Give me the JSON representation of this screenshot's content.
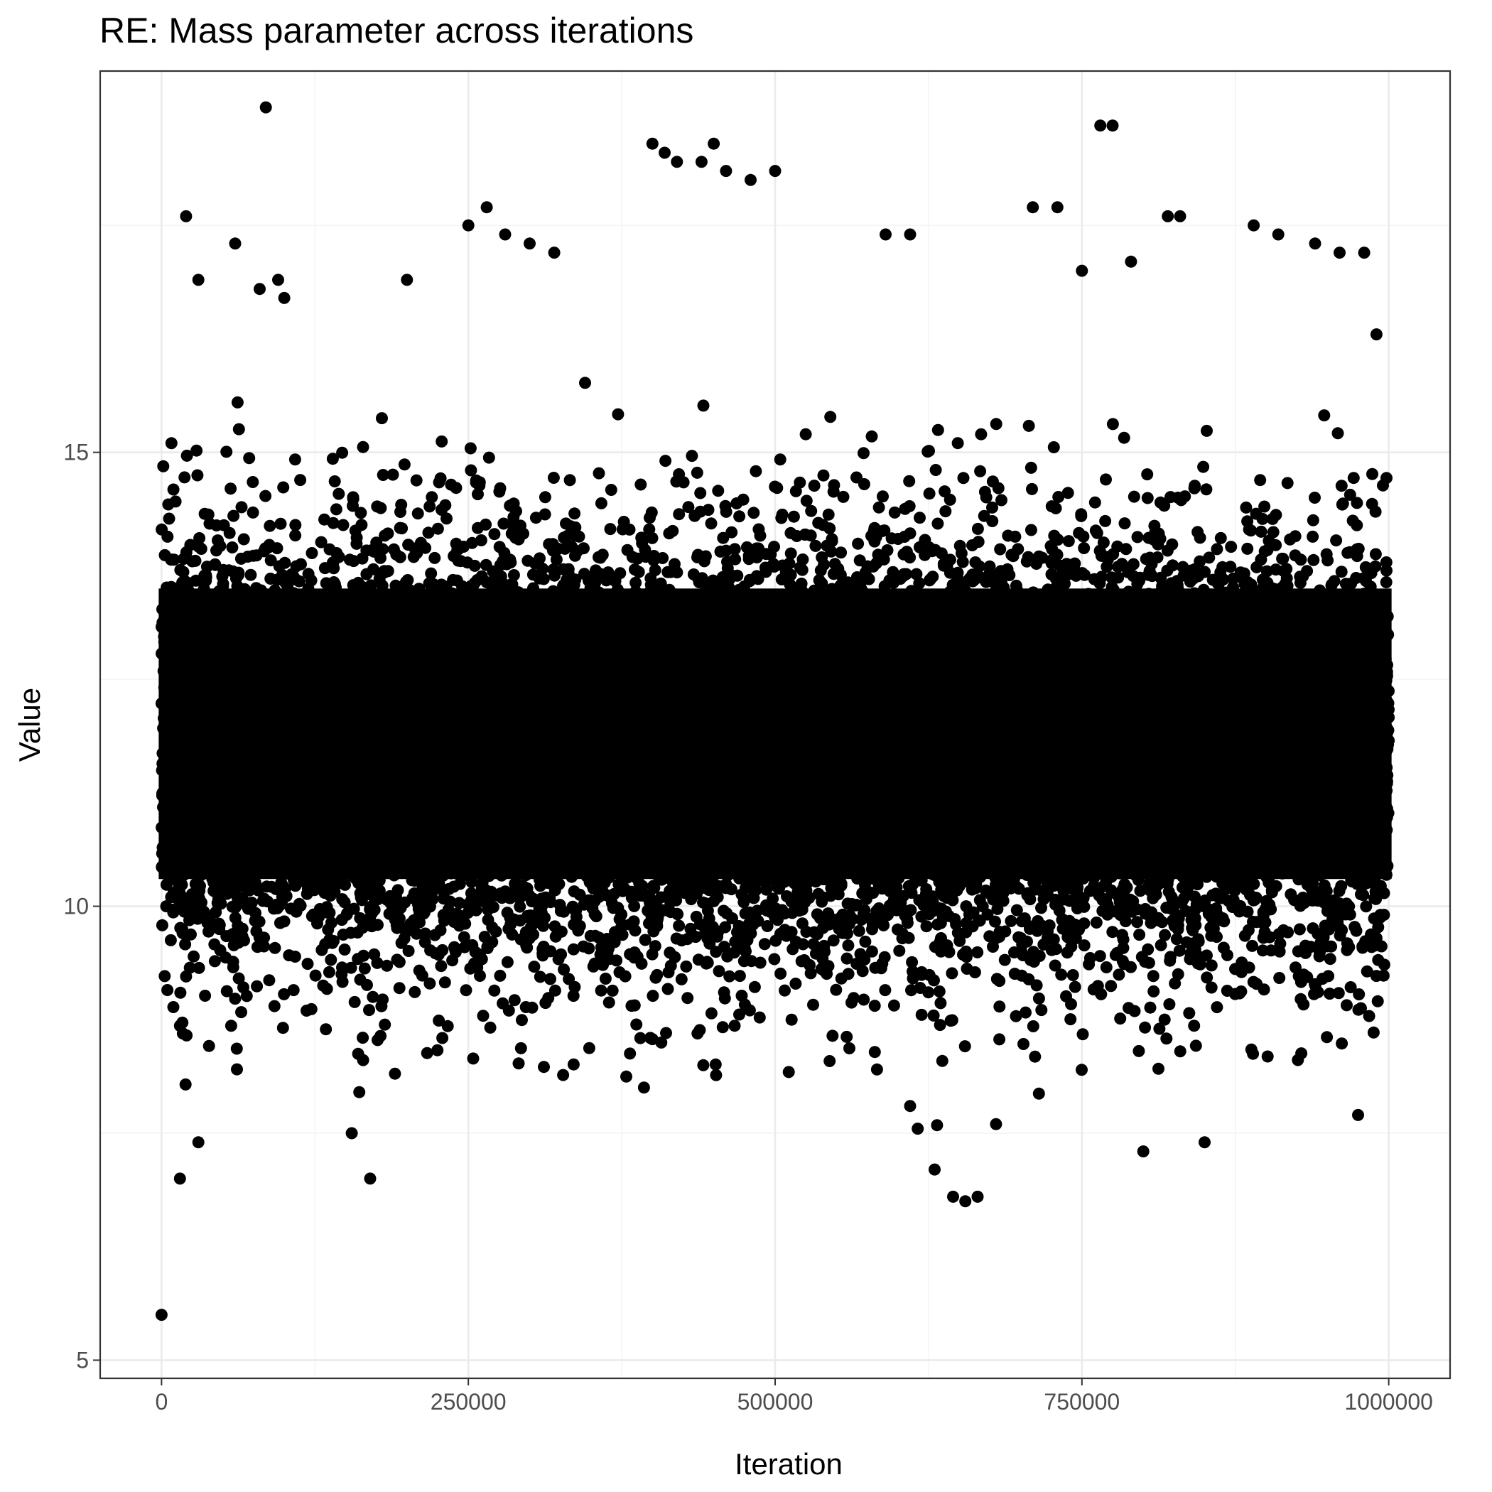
{
  "chart_data": {
    "type": "scatter",
    "title": "RE: Mass parameter across iterations",
    "xlabel": "Iteration",
    "ylabel": "Value",
    "xlim": [
      -50000,
      1050000
    ],
    "ylim": [
      4.8,
      19.2
    ],
    "x_ticks": [
      0,
      250000,
      500000,
      750000,
      1000000
    ],
    "x_tick_labels": [
      "0",
      "250000",
      "500000",
      "750000",
      "1000000"
    ],
    "y_ticks": [
      5,
      10,
      15
    ],
    "y_tick_labels": [
      "5",
      "10",
      "15"
    ],
    "grid": true,
    "legend": "none",
    "point_color": "#000000",
    "bulk": {
      "x_range": [
        0,
        1000000
      ],
      "center": 11.75,
      "spread_sd": 1.15,
      "dense_band": [
        10.3,
        13.5
      ],
      "sample_points": 14000
    },
    "outliers": {
      "x": [
        0,
        85000,
        20000,
        60000,
        30000,
        400000,
        410000,
        420000,
        440000,
        450000,
        460000,
        480000,
        500000,
        250000,
        265000,
        280000,
        300000,
        320000,
        200000,
        95000,
        100000,
        80000,
        590000,
        610000,
        710000,
        730000,
        750000,
        765000,
        775000,
        790000,
        820000,
        830000,
        890000,
        910000,
        940000,
        960000,
        980000,
        990000,
        645000,
        655000,
        665000,
        15000,
        30000,
        170000,
        155000,
        630000,
        800000,
        850000,
        975000,
        610000,
        680000
      ],
      "y": [
        5.5,
        18.8,
        17.6,
        17.3,
        16.9,
        18.4,
        18.3,
        18.2,
        18.2,
        18.4,
        18.1,
        18.0,
        18.1,
        17.5,
        17.7,
        17.4,
        17.3,
        17.2,
        16.9,
        16.9,
        16.7,
        16.8,
        17.4,
        17.4,
        17.7,
        17.7,
        17.0,
        18.6,
        18.6,
        17.1,
        17.6,
        17.6,
        17.5,
        17.4,
        17.3,
        17.2,
        17.2,
        16.3,
        6.8,
        6.75,
        6.8,
        7.0,
        7.4,
        7.0,
        7.5,
        7.1,
        7.3,
        7.4,
        7.7,
        7.8,
        7.6
      ]
    }
  }
}
